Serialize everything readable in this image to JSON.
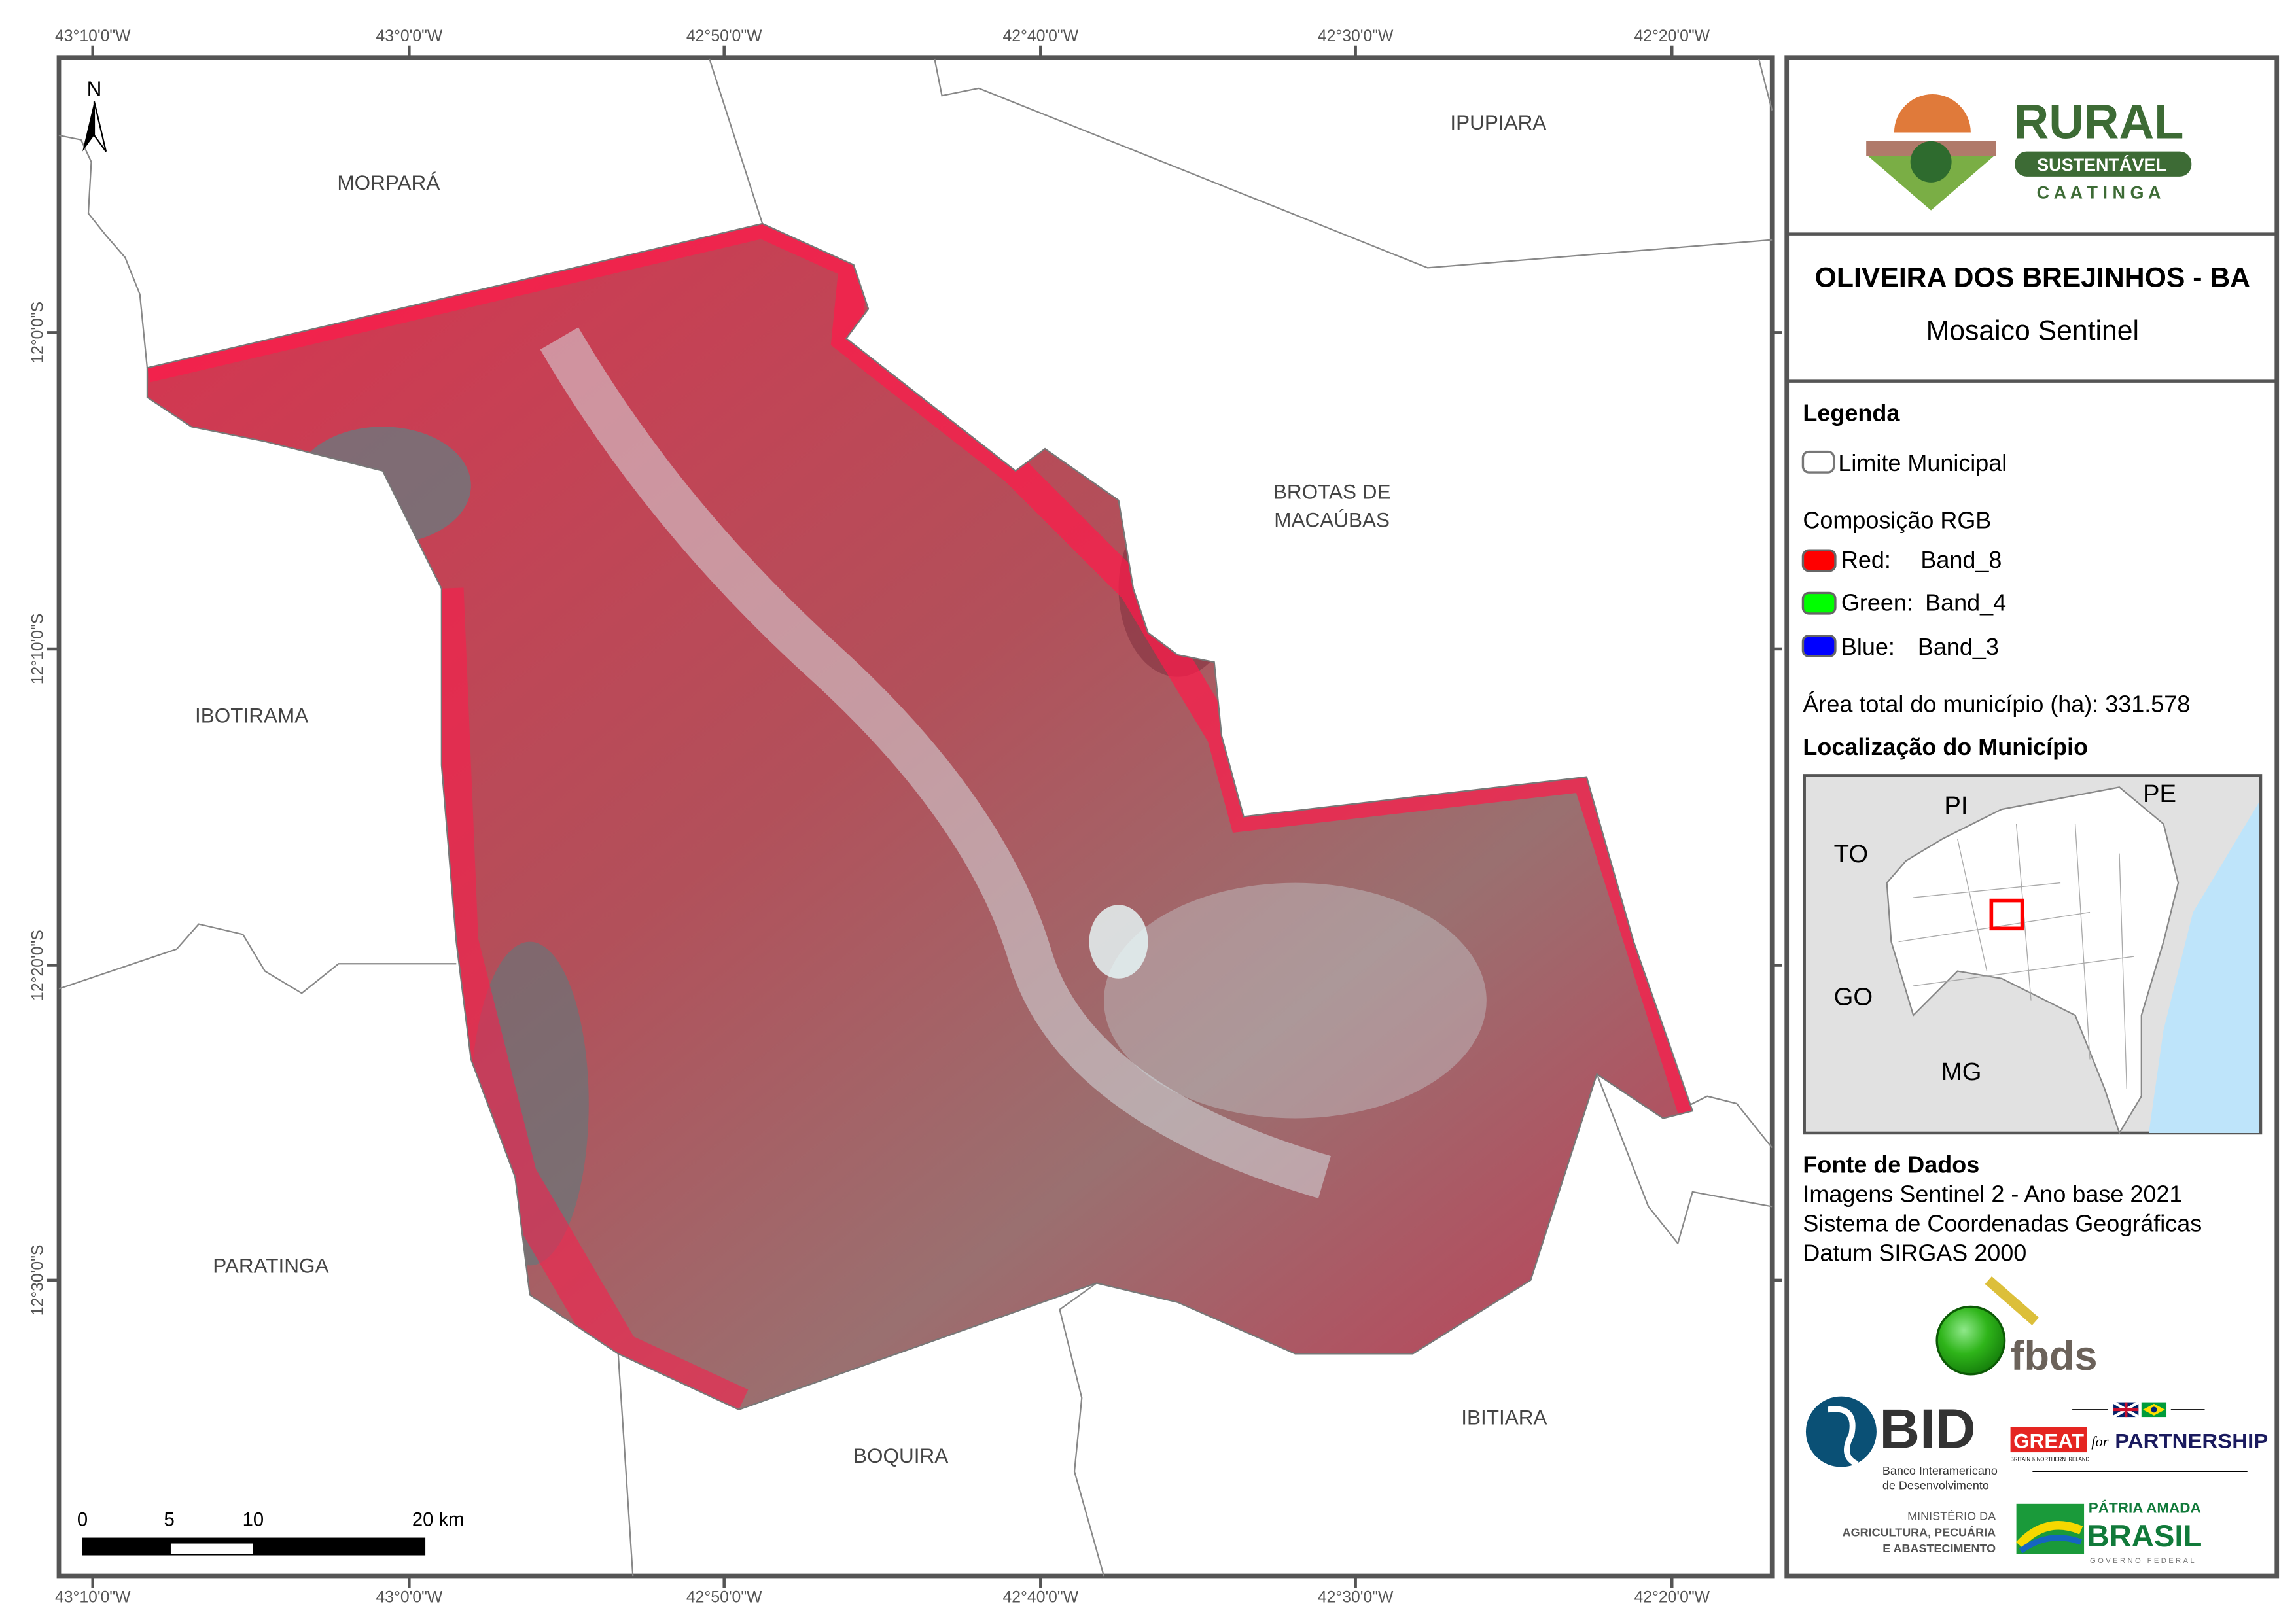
{
  "map": {
    "top_ticks": [
      "43°10'0\"W",
      "43°0'0\"W",
      "42°50'0\"W",
      "42°40'0\"W",
      "42°30'0\"W",
      "42°20'0\"W"
    ],
    "bottom_ticks": [
      "43°10'0\"W",
      "43°0'0\"W",
      "42°50'0\"W",
      "42°40'0\"W",
      "42°30'0\"W",
      "42°20'0\"W"
    ],
    "left_ticks": [
      "12°0'0\"S",
      "12°10'0\"S",
      "12°20'0\"S",
      "12°30'0\"S"
    ],
    "north_label": "N",
    "places": {
      "morpara": "MORPARÁ",
      "ipupiara": "IPUPIARA",
      "brotas_1": "BROTAS DE",
      "brotas_2": "MACAÚBAS",
      "ibotirama": "IBOTIRAMA",
      "paratinga": "PARATINGA",
      "boquira": "BOQUIRA",
      "ibitiara": "IBITIARA"
    },
    "scale_bar": {
      "labels": [
        "0",
        "5",
        "10",
        "20 km"
      ]
    }
  },
  "panel": {
    "logo": {
      "rural": "RURAL",
      "sustentavel": "SUSTENTÁVEL",
      "caatinga": "C A A T I N G A"
    },
    "title": "OLIVEIRA DOS BREJINHOS - BA",
    "subtitle": "Mosaico Sentinel",
    "legend": {
      "heading": "Legenda",
      "limite": "Limite Municipal",
      "rgb_heading": "Composição RGB",
      "bands": [
        {
          "channel": "Red:",
          "band": "Band_8",
          "color": "#ff0000"
        },
        {
          "channel": "Green:",
          "band": "Band_4",
          "color": "#00ff00"
        },
        {
          "channel": "Blue:",
          "band": "Band_3",
          "color": "#0000ff"
        }
      ],
      "area": "Área total do município (ha): 331.578"
    },
    "location": {
      "heading": "Localização do Município",
      "states": [
        "PI",
        "PE",
        "TO",
        "GO",
        "MG"
      ],
      "colors": {
        "ocean": "#bee4fa",
        "neighbors": "#e1e1e1",
        "bahia": "#ffffff",
        "highlight": "#ff0000"
      }
    },
    "source": {
      "heading": "Fonte de Dados",
      "lines": [
        "Imagens Sentinel 2 - Ano base 2021",
        "Sistema de Coordenadas Geográficas",
        "Datum SIRGAS 2000"
      ]
    },
    "logos": {
      "fbds": "fbds",
      "bid": "BID",
      "bid_sub_1": "Banco Interamericano",
      "bid_sub_2": "de Desenvolvimento",
      "great": "GREAT",
      "great_sub": "BRITAIN & NORTHERN IRELAND",
      "for": "for",
      "partnership": "PARTNERSHIP",
      "ministerio_1": "MINISTÉRIO DA",
      "ministerio_2": "AGRICULTURA, PECUÁRIA",
      "ministerio_3": "E ABASTECIMENTO",
      "patria": "PÁTRIA AMADA",
      "brasil": "BRASIL",
      "governo": "GOVERNO FEDERAL"
    }
  }
}
